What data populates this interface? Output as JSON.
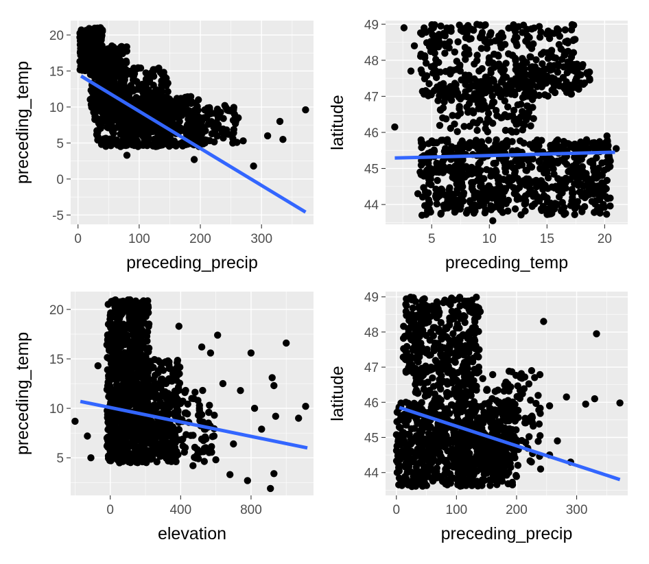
{
  "chart_data": [
    {
      "type": "scatter",
      "panel": "top-left",
      "xlabel": "preceding_precip",
      "ylabel": "preceding_temp",
      "xlim": [
        -12,
        385
      ],
      "ylim": [
        -6.3,
        22
      ],
      "xticks": [
        0,
        100,
        200,
        300
      ],
      "yticks": [
        -5,
        0,
        5,
        10,
        15,
        20
      ],
      "grid": true,
      "fit_line": [
        [
          5,
          14.3
        ],
        [
          372,
          -4.6
        ]
      ],
      "fit_color": "#3366ff",
      "point_color": "#000000",
      "clusters": [
        {
          "x": [
            3,
            40
          ],
          "y": [
            15,
            21
          ],
          "n": 260
        },
        {
          "x": [
            20,
            80
          ],
          "y": [
            8,
            18.5
          ],
          "n": 300
        },
        {
          "x": [
            30,
            150
          ],
          "y": [
            4.5,
            15.5
          ],
          "n": 420
        },
        {
          "x": [
            60,
            200
          ],
          "y": [
            4.5,
            11.5
          ],
          "n": 320
        },
        {
          "x": [
            150,
            260
          ],
          "y": [
            4.8,
            10
          ],
          "n": 120
        }
      ],
      "outliers": [
        {
          "x": 372,
          "y": 9.6
        },
        {
          "x": 330,
          "y": 8.0
        },
        {
          "x": 335,
          "y": 5.5
        },
        {
          "x": 310,
          "y": 6.0
        },
        {
          "x": 287,
          "y": 1.8
        },
        {
          "x": 270,
          "y": 5.3
        },
        {
          "x": 262,
          "y": 8.5
        },
        {
          "x": 243,
          "y": 6.8
        },
        {
          "x": 240,
          "y": 10.2
        },
        {
          "x": 228,
          "y": 9.7
        },
        {
          "x": 190,
          "y": 2.7
        },
        {
          "x": 80,
          "y": 3.3
        },
        {
          "x": 132,
          "y": 15.4
        },
        {
          "x": 215,
          "y": 9.9
        }
      ]
    },
    {
      "type": "scatter",
      "panel": "top-right",
      "xlabel": "preceding_temp",
      "ylabel": "latitude",
      "xlim": [
        1,
        22
      ],
      "ylim": [
        43.45,
        49.1
      ],
      "xticks": [
        5,
        10,
        15,
        20
      ],
      "yticks": [
        44,
        45,
        46,
        47,
        48,
        49
      ],
      "grid": true,
      "fit_line": [
        [
          1.8,
          45.29
        ],
        [
          20.9,
          45.45
        ]
      ],
      "fit_color": "#3366ff",
      "point_color": "#000000",
      "clusters": [
        {
          "x": [
            4,
            17.5
          ],
          "y": [
            47,
            49
          ],
          "n": 360
        },
        {
          "x": [
            5.5,
            14
          ],
          "y": [
            46,
            47.5
          ],
          "n": 140
        },
        {
          "x": [
            4,
            20.5
          ],
          "y": [
            43.7,
            45.8
          ],
          "n": 700
        },
        {
          "x": [
            12,
            19
          ],
          "y": [
            47.2,
            47.9
          ],
          "n": 60
        }
      ],
      "outliers": [
        {
          "x": 1.8,
          "y": 46.15
        },
        {
          "x": 2.6,
          "y": 48.9
        },
        {
          "x": 3.2,
          "y": 47.7
        },
        {
          "x": 3.5,
          "y": 48.4
        },
        {
          "x": 3.8,
          "y": 44.3
        },
        {
          "x": 4.0,
          "y": 44.9
        },
        {
          "x": 10.3,
          "y": 43.55
        },
        {
          "x": 21.0,
          "y": 45.55
        },
        {
          "x": 20.2,
          "y": 45.9
        }
      ]
    },
    {
      "type": "scatter",
      "panel": "bottom-left",
      "xlabel": "elevation",
      "ylabel": "preceding_temp",
      "xlim": [
        -225,
        1155
      ],
      "ylim": [
        1.2,
        21.8
      ],
      "xticks": [
        0,
        400,
        800
      ],
      "yticks": [
        5,
        10,
        15,
        20
      ],
      "grid": true,
      "fit_line": [
        [
          -170,
          10.7
        ],
        [
          1120,
          6.0
        ]
      ],
      "fit_color": "#3366ff",
      "point_color": "#000000",
      "clusters": [
        {
          "x": [
            -20,
            220
          ],
          "y": [
            4.5,
            21
          ],
          "n": 700
        },
        {
          "x": [
            20,
            400
          ],
          "y": [
            5,
            15
          ],
          "n": 340
        },
        {
          "x": [
            150,
            600
          ],
          "y": [
            4.5,
            12
          ],
          "n": 150
        }
      ],
      "outliers": [
        {
          "x": -200,
          "y": 8.7
        },
        {
          "x": -130,
          "y": 7.2
        },
        {
          "x": -110,
          "y": 5.0
        },
        {
          "x": -70,
          "y": 14.3
        },
        {
          "x": 1000,
          "y": 16.6
        },
        {
          "x": 1110,
          "y": 10.2
        },
        {
          "x": 910,
          "y": 1.9
        },
        {
          "x": 930,
          "y": 3.4
        },
        {
          "x": 780,
          "y": 2.7
        },
        {
          "x": 680,
          "y": 3.3
        },
        {
          "x": 610,
          "y": 17.4
        },
        {
          "x": 800,
          "y": 15.6
        },
        {
          "x": 920,
          "y": 13.1
        },
        {
          "x": 930,
          "y": 12.3
        },
        {
          "x": 1070,
          "y": 9.0
        },
        {
          "x": 940,
          "y": 9.2
        },
        {
          "x": 740,
          "y": 11.8
        },
        {
          "x": 820,
          "y": 10.0
        },
        {
          "x": 860,
          "y": 7.9
        },
        {
          "x": 700,
          "y": 6.4
        },
        {
          "x": 570,
          "y": 15.6
        },
        {
          "x": 520,
          "y": 16.2
        },
        {
          "x": 470,
          "y": 4.2
        },
        {
          "x": 390,
          "y": 18.3
        },
        {
          "x": 640,
          "y": 12.5
        },
        {
          "x": 560,
          "y": 9.6
        },
        {
          "x": 600,
          "y": 4.8
        }
      ]
    },
    {
      "type": "scatter",
      "panel": "bottom-right",
      "xlabel": "preceding_precip",
      "ylabel": "latitude",
      "xlim": [
        -18,
        385
      ],
      "ylim": [
        43.35,
        49.15
      ],
      "xticks": [
        0,
        100,
        200,
        300
      ],
      "yticks": [
        44,
        45,
        46,
        47,
        48,
        49
      ],
      "grid": true,
      "fit_line": [
        [
          5,
          45.85
        ],
        [
          372,
          43.8
        ]
      ],
      "fit_color": "#3366ff",
      "point_color": "#000000",
      "clusters": [
        {
          "x": [
            10,
            140
          ],
          "y": [
            46.8,
            49
          ],
          "n": 320
        },
        {
          "x": [
            30,
            130
          ],
          "y": [
            46,
            47
          ],
          "n": 80
        },
        {
          "x": [
            0,
            200
          ],
          "y": [
            43.6,
            46
          ],
          "n": 750
        },
        {
          "x": [
            100,
            240
          ],
          "y": [
            44.1,
            46.9
          ],
          "n": 150
        }
      ],
      "outliers": [
        {
          "x": 333,
          "y": 47.95
        },
        {
          "x": 372,
          "y": 45.98
        },
        {
          "x": 330,
          "y": 46.1
        },
        {
          "x": 315,
          "y": 45.95
        },
        {
          "x": 290,
          "y": 44.3
        },
        {
          "x": 283,
          "y": 46.15
        },
        {
          "x": 255,
          "y": 45.9
        },
        {
          "x": 245,
          "y": 48.3
        },
        {
          "x": 255,
          "y": 44.5
        },
        {
          "x": 225,
          "y": 46.9
        },
        {
          "x": 268,
          "y": 44.9
        },
        {
          "x": 240,
          "y": 44.1
        }
      ]
    }
  ]
}
